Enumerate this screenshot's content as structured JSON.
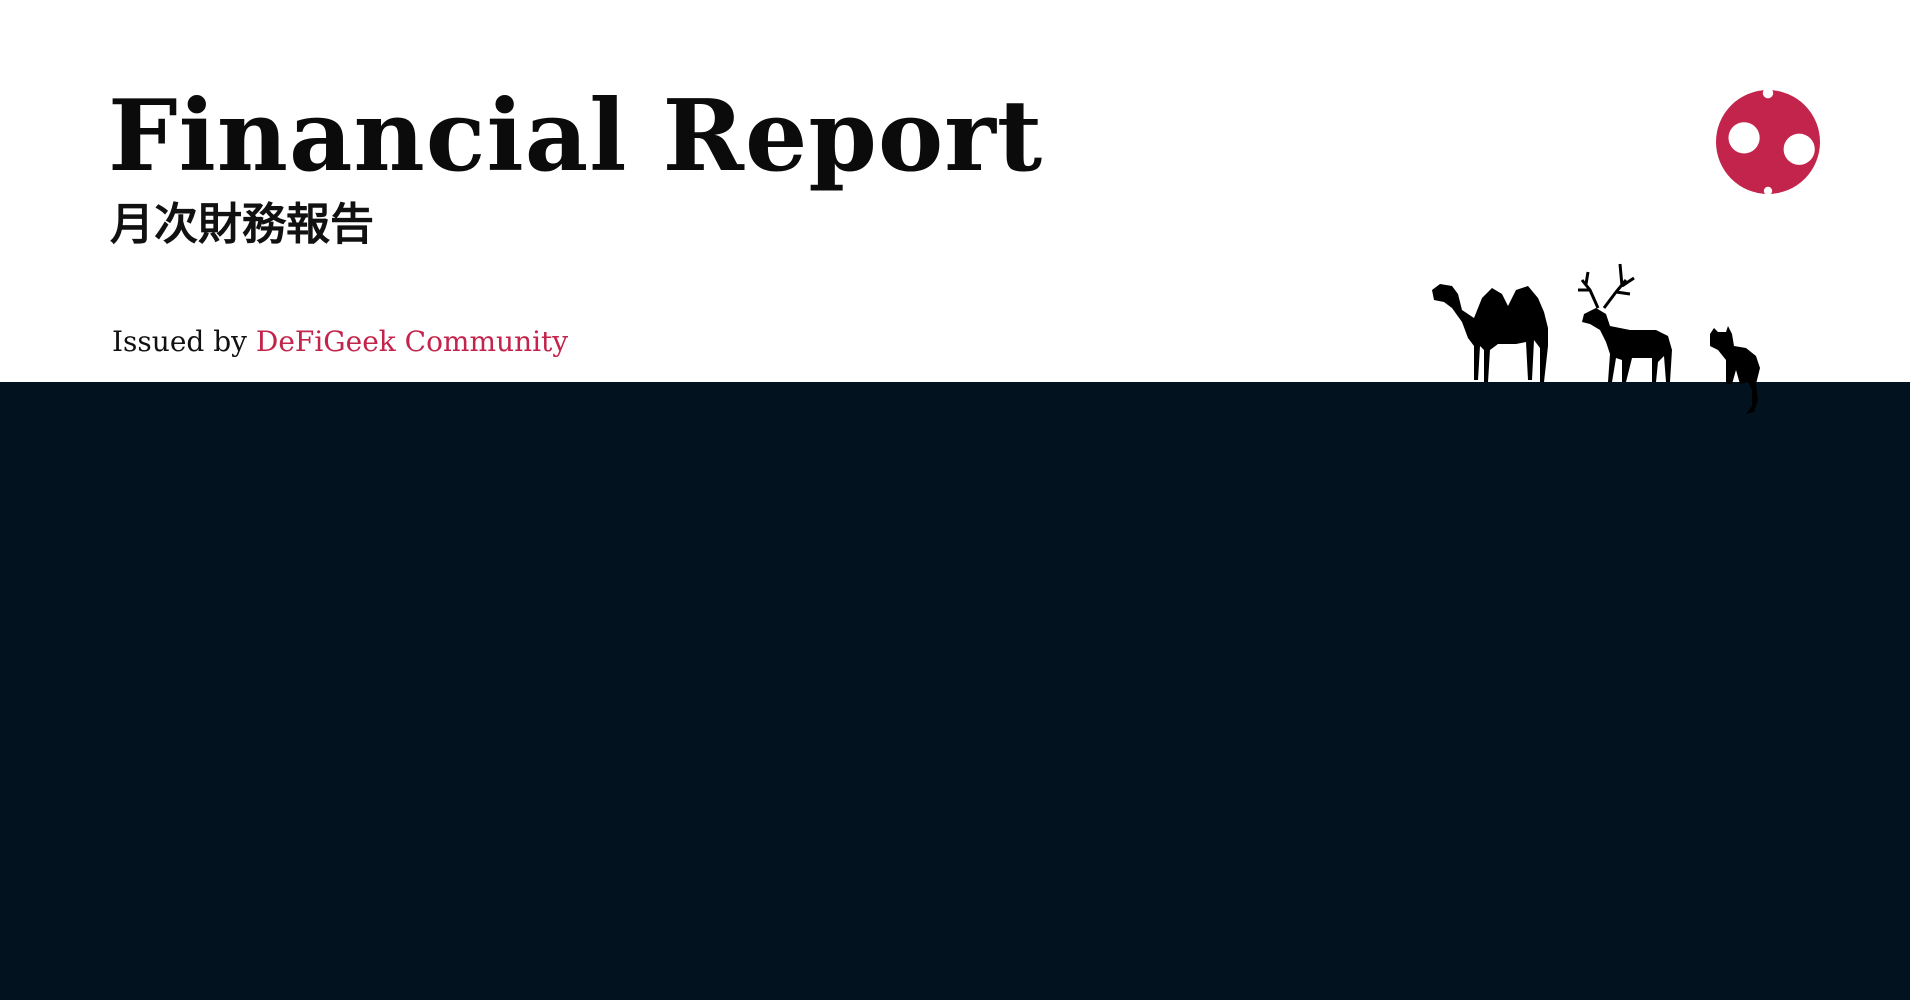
{
  "header": {
    "title": "Financial Report",
    "subtitle": "月次財務報告",
    "issued_prefix": "Issued by",
    "issuer": "DeFiGeek Community"
  },
  "colors": {
    "accent": "#c3244b",
    "background_top": "#ffffff",
    "background_bottom": "#02131f",
    "text": "#0b0b0b"
  },
  "icons": {
    "logo": "defigeek-logo-icon",
    "silhouettes": [
      "camel-icon",
      "deer-icon",
      "cat-icon"
    ]
  }
}
